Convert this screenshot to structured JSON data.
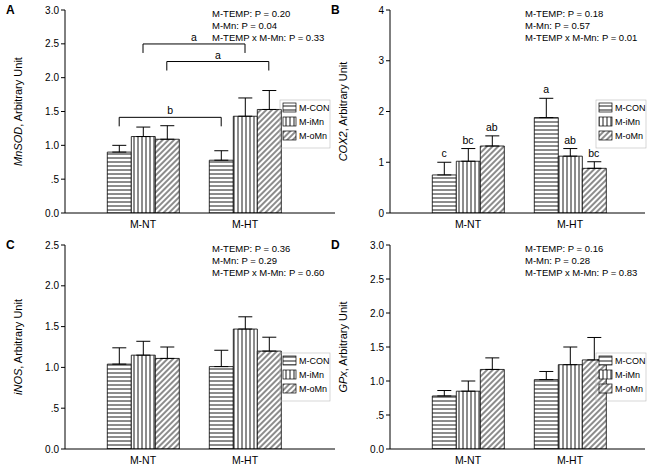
{
  "chart_data": [
    {
      "type": "bar",
      "title": "A",
      "ylabel": "MnSOD, Arbitrary Unit",
      "categories": [
        "M-NT",
        "M-HT"
      ],
      "ylim": [
        0,
        3
      ],
      "yticks": [
        {
          "value": 0,
          "label": "0.0"
        },
        {
          "value": 0.5,
          "label": ".5"
        },
        {
          "value": 1,
          "label": "1.0"
        },
        {
          "value": 1.5,
          "label": "1.5"
        },
        {
          "value": 2,
          "label": "2.0"
        },
        {
          "value": 2.5,
          "label": "2.5"
        },
        {
          "value": 3,
          "label": "3.0"
        }
      ],
      "grid": false,
      "legend": "right",
      "annotations": [
        "M-TEMP: P = 0.20",
        "M-Mn: P = 0.04",
        "M-TEMP x M-Mn: P = 0.33"
      ],
      "series": [
        {
          "name": "M-CON",
          "color": "#000000",
          "values": [
            0.9,
            0.78
          ],
          "errors": [
            0.1,
            0.14
          ],
          "bracket_letter": "b"
        },
        {
          "name": "M-iMn",
          "color": "#000000",
          "values": [
            1.13,
            1.43
          ],
          "errors": [
            0.14,
            0.27
          ],
          "bracket_letter": "a"
        },
        {
          "name": "M-oMn",
          "color": "#000000",
          "values": [
            1.09,
            1.53
          ],
          "errors": [
            0.2,
            0.28
          ],
          "bracket_letter": "a"
        }
      ]
    },
    {
      "type": "bar",
      "title": "B",
      "ylabel": "COX2, Arbitrary Unit",
      "categories": [
        "M-NT",
        "M-HT"
      ],
      "ylim": [
        0,
        4
      ],
      "yticks": [
        0,
        1,
        2,
        3,
        4
      ],
      "grid": false,
      "legend": "right",
      "annotations": [
        "M-TEMP: P = 0.18",
        "M-Mn: P = 0.57",
        "M-TEMP x M-Mn: P = 0.01"
      ],
      "series": [
        {
          "name": "M-CON",
          "color": "#000000",
          "values": [
            0.75,
            1.88
          ],
          "errors": [
            0.25,
            0.38
          ],
          "letters": [
            "c",
            "a"
          ]
        },
        {
          "name": "M-iMn",
          "color": "#000000",
          "values": [
            1.02,
            1.12
          ],
          "errors": [
            0.25,
            0.15
          ],
          "letters": [
            "bc",
            "ab"
          ]
        },
        {
          "name": "M-oMn",
          "color": "#000000",
          "values": [
            1.32,
            0.88
          ],
          "errors": [
            0.2,
            0.13
          ],
          "letters": [
            "ab",
            "bc"
          ]
        }
      ]
    },
    {
      "type": "bar",
      "title": "C",
      "ylabel": "iNOS, Arbitrary Unit",
      "categories": [
        "M-NT",
        "M-HT"
      ],
      "ylim": [
        0,
        2.5
      ],
      "yticks": [
        {
          "value": 0,
          "label": "0.0"
        },
        {
          "value": 0.5,
          "label": ".5"
        },
        {
          "value": 1,
          "label": "1.0"
        },
        {
          "value": 1.5,
          "label": "1.5"
        },
        {
          "value": 2,
          "label": "2.0"
        },
        {
          "value": 2.5,
          "label": "2.5"
        }
      ],
      "grid": false,
      "legend": "right",
      "annotations": [
        "M-TEMP: P = 0.36",
        "M-Mn: P = 0.29",
        "M-TEMP x M-Mn: P = 0.60"
      ],
      "series": [
        {
          "name": "M-CON",
          "color": "#000000",
          "values": [
            1.04,
            1.01
          ],
          "errors": [
            0.2,
            0.2
          ]
        },
        {
          "name": "M-iMn",
          "color": "#000000",
          "values": [
            1.15,
            1.47
          ],
          "errors": [
            0.17,
            0.15
          ]
        },
        {
          "name": "M-oMn",
          "color": "#000000",
          "values": [
            1.11,
            1.2
          ],
          "errors": [
            0.14,
            0.17
          ]
        }
      ]
    },
    {
      "type": "bar",
      "title": "D",
      "ylabel": "GPx, Arbitrary Unit",
      "categories": [
        "M-NT",
        "M-HT"
      ],
      "ylim": [
        0,
        3
      ],
      "yticks": [
        {
          "value": 0,
          "label": "0.0"
        },
        {
          "value": 0.5,
          "label": ".5"
        },
        {
          "value": 1,
          "label": "1.0"
        },
        {
          "value": 1.5,
          "label": "1.5"
        },
        {
          "value": 2,
          "label": "2.0"
        },
        {
          "value": 2.5,
          "label": "2.5"
        },
        {
          "value": 3,
          "label": "3.0"
        }
      ],
      "grid": false,
      "legend": "right",
      "annotations": [
        "M-TEMP: P = 0.16",
        "M-Mn: P = 0.28",
        "M-TEMP x M-Mn: P = 0.83"
      ],
      "series": [
        {
          "name": "M-CON",
          "color": "#000000",
          "values": [
            0.78,
            1.02
          ],
          "errors": [
            0.08,
            0.12
          ]
        },
        {
          "name": "M-iMn",
          "color": "#000000",
          "values": [
            0.85,
            1.24
          ],
          "errors": [
            0.15,
            0.26
          ]
        },
        {
          "name": "M-oMn",
          "color": "#000000",
          "values": [
            1.17,
            1.31
          ],
          "errors": [
            0.17,
            0.33
          ]
        }
      ]
    }
  ]
}
